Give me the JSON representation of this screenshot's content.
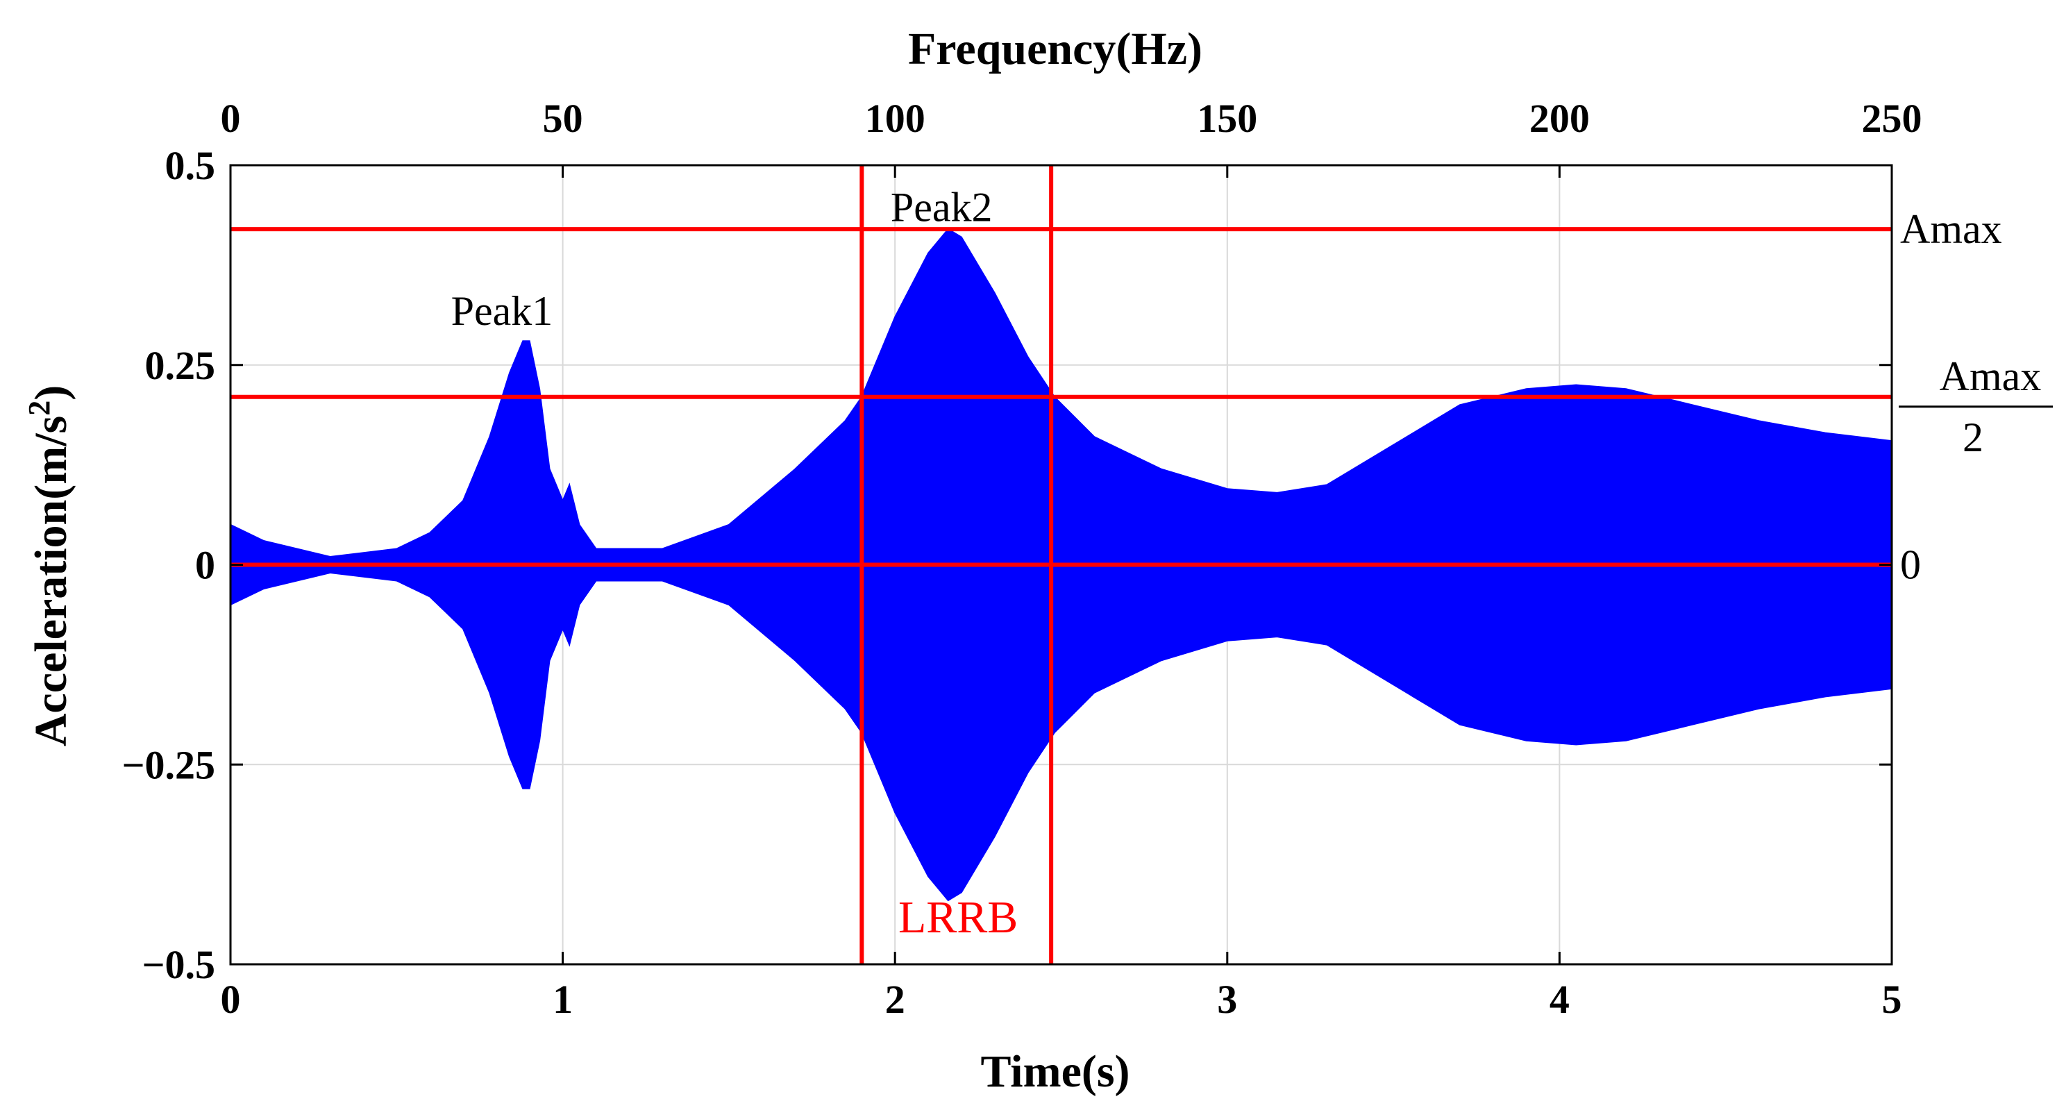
{
  "chart_data": {
    "type": "area",
    "xlabel": "Time(s)",
    "x2label": "Frequency(Hz)",
    "ylabel_main": "Acceleration(m/s",
    "ylabel_sup": "2",
    "ylabel_close": ")",
    "xlim": [
      0,
      5
    ],
    "x2lim": [
      0,
      250
    ],
    "ylim": [
      -0.5,
      0.5
    ],
    "xticks": [
      "0",
      "1",
      "2",
      "3",
      "4",
      "5"
    ],
    "x2ticks": [
      "0",
      "50",
      "100",
      "150",
      "200",
      "250"
    ],
    "yticks": [
      "0.5",
      "0.25",
      "0",
      "−0.25",
      "−0.5"
    ],
    "grid": true,
    "series": [
      {
        "color": "#0000ff",
        "x": [
          0,
          0.1,
          0.3,
          0.5,
          0.6,
          0.7,
          0.78,
          0.84,
          0.88,
          0.9,
          0.93,
          0.96,
          1.0,
          1.02,
          1.05,
          1.1,
          1.2,
          1.3,
          1.5,
          1.7,
          1.85,
          1.9,
          2.0,
          2.1,
          2.16,
          2.2,
          2.3,
          2.4,
          2.48,
          2.6,
          2.8,
          3.0,
          3.15,
          3.3,
          3.5,
          3.7,
          3.9,
          4.05,
          4.2,
          4.4,
          4.6,
          4.8,
          5.0
        ],
        "upper_envelope": [
          0.05,
          0.03,
          0.01,
          0.02,
          0.04,
          0.08,
          0.16,
          0.24,
          0.28,
          0.28,
          0.22,
          0.12,
          0.08,
          0.1,
          0.05,
          0.02,
          0.02,
          0.02,
          0.05,
          0.12,
          0.18,
          0.21,
          0.31,
          0.39,
          0.42,
          0.41,
          0.34,
          0.26,
          0.21,
          0.16,
          0.12,
          0.095,
          0.09,
          0.1,
          0.15,
          0.2,
          0.22,
          0.225,
          0.22,
          0.2,
          0.18,
          0.165,
          0.155
        ],
        "lower_envelope": [
          -0.05,
          -0.03,
          -0.01,
          -0.02,
          -0.04,
          -0.08,
          -0.16,
          -0.24,
          -0.28,
          -0.28,
          -0.22,
          -0.12,
          -0.08,
          -0.1,
          -0.05,
          -0.02,
          -0.02,
          -0.02,
          -0.05,
          -0.12,
          -0.18,
          -0.21,
          -0.31,
          -0.39,
          -0.42,
          -0.41,
          -0.34,
          -0.26,
          -0.21,
          -0.16,
          -0.12,
          -0.095,
          -0.09,
          -0.1,
          -0.15,
          -0.2,
          -0.22,
          -0.225,
          -0.22,
          -0.2,
          -0.18,
          -0.165,
          -0.155
        ]
      }
    ],
    "reference_lines": {
      "color": "#ff0000",
      "horizontal": [
        {
          "y": 0.42,
          "label": "Amax"
        },
        {
          "y": 0.21,
          "label_num": "Amax",
          "label_den": "2"
        },
        {
          "y": 0,
          "label": "0"
        }
      ],
      "vertical": [
        {
          "x": 1.9
        },
        {
          "x": 2.47
        }
      ]
    },
    "annotations": [
      {
        "text": "Peak1",
        "x": 0.97,
        "y": 0.3
      },
      {
        "text": "Peak2",
        "x": 2.14,
        "y": 0.43
      }
    ],
    "band_label": {
      "text": "LRRB",
      "x": 2.19,
      "y": -0.46
    }
  }
}
